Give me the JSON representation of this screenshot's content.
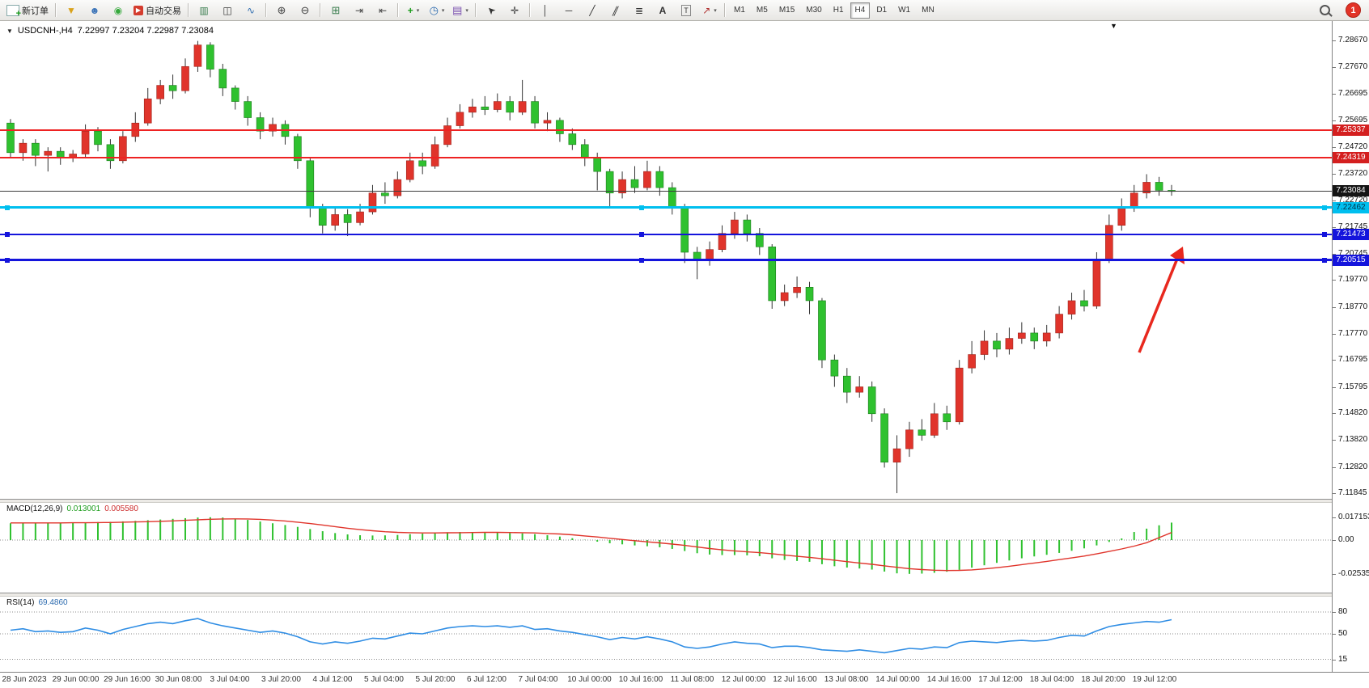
{
  "toolbar": {
    "new_order": "新订单",
    "autotrading": "自动交易",
    "timeframes": [
      {
        "label": "M1",
        "active": false
      },
      {
        "label": "M5",
        "active": false
      },
      {
        "label": "M15",
        "active": false
      },
      {
        "label": "M30",
        "active": false
      },
      {
        "label": "H1",
        "active": false
      },
      {
        "label": "H4",
        "active": true
      },
      {
        "label": "D1",
        "active": false
      },
      {
        "label": "W1",
        "active": false
      },
      {
        "label": "MN",
        "active": false
      }
    ],
    "notification_count": "1"
  },
  "chart": {
    "title_symbol": "USDCNH-,H4",
    "title_ohlc": "7.22997 7.23204 7.22987 7.23084"
  },
  "hlines": [
    {
      "name": "resistance-line-1",
      "price": 7.25337,
      "label": "7.25337",
      "color": "#ee2222",
      "tag_bg": "#d41f1f",
      "tag_fg": "#ffffff",
      "thickness": 2,
      "handles": false
    },
    {
      "name": "resistance-line-2",
      "price": 7.24319,
      "label": "7.24319",
      "color": "#ee2222",
      "tag_bg": "#d41f1f",
      "tag_fg": "#ffffff",
      "thickness": 2,
      "handles": false
    },
    {
      "name": "current-price-line",
      "price": 7.23084,
      "label": "7.23084",
      "color": "#3c3c3c",
      "tag_bg": "#141414",
      "tag_fg": "#ffffff",
      "thickness": 1,
      "handles": false
    },
    {
      "name": "support-line-cyan",
      "price": 7.22462,
      "label": "7.22462",
      "color": "#00bfef",
      "tag_bg": "#00bfef",
      "tag_fg": "#00324a",
      "thickness": 3,
      "handles": true
    },
    {
      "name": "support-line-blue-1",
      "price": 7.21473,
      "label": "7.21473",
      "color": "#1414dc",
      "tag_bg": "#1414dc",
      "tag_fg": "#ffffff",
      "thickness": 2,
      "handles": true
    },
    {
      "name": "support-line-blue-2",
      "price": 7.20515,
      "label": "7.20515",
      "color": "#1414dc",
      "tag_bg": "#1414dc",
      "tag_fg": "#ffffff",
      "thickness": 3,
      "handles": true
    }
  ],
  "panels": {
    "macd": {
      "name": "MACD(12,26,9)",
      "value": "0.013001",
      "signal": "0.005580",
      "axis": [
        {
          "label": "0.017153",
          "value": 0.017153
        },
        {
          "label": "0.00",
          "value": 0
        },
        {
          "label": "-0.025358",
          "value": -0.025358
        }
      ]
    },
    "rsi": {
      "name": "RSI(14)",
      "value": "69.4860",
      "levels": [
        {
          "label": "80",
          "value": 80
        },
        {
          "label": "50",
          "value": 50
        },
        {
          "label": "15",
          "value": 15
        }
      ]
    }
  },
  "annotation": {
    "arrow_color": "#e8281e"
  },
  "chart_data": {
    "type": "candlestick",
    "title": "USDCNH-,H4",
    "symbol": "USDCNH",
    "timeframe": "H4",
    "bull_color": "#e0342b",
    "bear_color": "#2fc12f",
    "price_range": {
      "top": 7.2939,
      "bottom": 7.1164
    },
    "price_ticks": [
      "7.28670",
      "7.27670",
      "7.26695",
      "7.25695",
      "7.24720",
      "7.23720",
      "7.22720",
      "7.21745",
      "7.20745",
      "7.19770",
      "7.18770",
      "7.17770",
      "7.16795",
      "7.15795",
      "7.14820",
      "7.13820",
      "7.12820",
      "7.11845"
    ],
    "time_labels": [
      "28 Jun 2023",
      "29 Jun 00:00",
      "29 Jun 16:00",
      "30 Jun 08:00",
      "3 Jul 04:00",
      "3 Jul 20:00",
      "4 Jul 12:00",
      "5 Jul 04:00",
      "5 Jul 20:00",
      "6 Jul 12:00",
      "7 Jul 04:00",
      "10 Jul 00:00",
      "10 Jul 16:00",
      "11 Jul 08:00",
      "12 Jul 00:00",
      "12 Jul 16:00",
      "13 Jul 08:00",
      "14 Jul 00:00",
      "14 Jul 16:00",
      "17 Jul 12:00",
      "18 Jul 04:00",
      "18 Jul 20:00",
      "19 Jul 12:00"
    ],
    "candles": [
      [
        7.256,
        7.2575,
        7.243,
        7.245
      ],
      [
        7.245,
        7.25,
        7.242,
        7.2485
      ],
      [
        7.2485,
        7.25,
        7.24,
        7.244
      ],
      [
        7.244,
        7.247,
        7.238,
        7.2455
      ],
      [
        7.2455,
        7.247,
        7.2405,
        7.243
      ],
      [
        7.243,
        7.246,
        7.2415,
        7.2445
      ],
      [
        7.2445,
        7.2555,
        7.243,
        7.253
      ],
      [
        7.253,
        7.2545,
        7.2455,
        7.248
      ],
      [
        7.248,
        7.25,
        7.239,
        7.242
      ],
      [
        7.242,
        7.253,
        7.241,
        7.251
      ],
      [
        7.251,
        7.26,
        7.249,
        7.256
      ],
      [
        7.256,
        7.269,
        7.255,
        7.265
      ],
      [
        7.265,
        7.272,
        7.263,
        7.27
      ],
      [
        7.27,
        7.274,
        7.265,
        7.268
      ],
      [
        7.268,
        7.28,
        7.267,
        7.277
      ],
      [
        7.277,
        7.2865,
        7.275,
        7.285
      ],
      [
        7.285,
        7.286,
        7.273,
        7.276
      ],
      [
        7.276,
        7.278,
        7.266,
        7.269
      ],
      [
        7.269,
        7.27,
        7.261,
        7.264
      ],
      [
        7.264,
        7.266,
        7.255,
        7.258
      ],
      [
        7.258,
        7.26,
        7.25,
        7.253
      ],
      [
        7.253,
        7.258,
        7.251,
        7.2555
      ],
      [
        7.2555,
        7.257,
        7.248,
        7.251
      ],
      [
        7.251,
        7.252,
        7.239,
        7.242
      ],
      [
        7.242,
        7.243,
        7.221,
        7.225
      ],
      [
        7.225,
        7.226,
        7.215,
        7.218
      ],
      [
        7.218,
        7.225,
        7.216,
        7.222
      ],
      [
        7.222,
        7.224,
        7.214,
        7.219
      ],
      [
        7.219,
        7.226,
        7.218,
        7.223
      ],
      [
        7.223,
        7.233,
        7.222,
        7.23
      ],
      [
        7.23,
        7.234,
        7.226,
        7.229
      ],
      [
        7.229,
        7.238,
        7.228,
        7.235
      ],
      [
        7.235,
        7.245,
        7.234,
        7.242
      ],
      [
        7.242,
        7.245,
        7.237,
        7.24
      ],
      [
        7.24,
        7.251,
        7.239,
        7.248
      ],
      [
        7.248,
        7.258,
        7.247,
        7.255
      ],
      [
        7.255,
        7.263,
        7.254,
        7.26
      ],
      [
        7.26,
        7.265,
        7.258,
        7.262
      ],
      [
        7.262,
        7.266,
        7.259,
        7.261
      ],
      [
        7.261,
        7.267,
        7.26,
        7.264
      ],
      [
        7.264,
        7.266,
        7.257,
        7.26
      ],
      [
        7.26,
        7.272,
        7.259,
        7.264
      ],
      [
        7.264,
        7.266,
        7.254,
        7.256
      ],
      [
        7.256,
        7.26,
        7.253,
        7.257
      ],
      [
        7.257,
        7.258,
        7.249,
        7.252
      ],
      [
        7.252,
        7.254,
        7.246,
        7.248
      ],
      [
        7.248,
        7.25,
        7.24,
        7.243
      ],
      [
        7.243,
        7.245,
        7.231,
        7.238
      ],
      [
        7.238,
        7.239,
        7.225,
        7.23
      ],
      [
        7.23,
        7.238,
        7.228,
        7.235
      ],
      [
        7.235,
        7.24,
        7.23,
        7.232
      ],
      [
        7.232,
        7.242,
        7.231,
        7.238
      ],
      [
        7.238,
        7.24,
        7.229,
        7.232
      ],
      [
        7.232,
        7.234,
        7.222,
        7.225
      ],
      [
        7.225,
        7.226,
        7.204,
        7.208
      ],
      [
        7.208,
        7.21,
        7.198,
        7.205
      ],
      [
        7.205,
        7.212,
        7.203,
        7.209
      ],
      [
        7.209,
        7.218,
        7.208,
        7.215
      ],
      [
        7.215,
        7.223,
        7.213,
        7.22
      ],
      [
        7.22,
        7.222,
        7.212,
        7.215
      ],
      [
        7.215,
        7.217,
        7.207,
        7.21
      ],
      [
        7.21,
        7.211,
        7.187,
        7.19
      ],
      [
        7.19,
        7.196,
        7.188,
        7.193
      ],
      [
        7.193,
        7.199,
        7.191,
        7.195
      ],
      [
        7.195,
        7.197,
        7.185,
        7.19
      ],
      [
        7.19,
        7.191,
        7.165,
        7.168
      ],
      [
        7.168,
        7.17,
        7.158,
        7.162
      ],
      [
        7.162,
        7.165,
        7.152,
        7.156
      ],
      [
        7.156,
        7.162,
        7.154,
        7.158
      ],
      [
        7.158,
        7.16,
        7.145,
        7.148
      ],
      [
        7.148,
        7.15,
        7.128,
        7.13
      ],
      [
        7.13,
        7.14,
        7.1185,
        7.135
      ],
      [
        7.135,
        7.145,
        7.132,
        7.142
      ],
      [
        7.142,
        7.146,
        7.138,
        7.14
      ],
      [
        7.14,
        7.152,
        7.139,
        7.148
      ],
      [
        7.148,
        7.151,
        7.142,
        7.145
      ],
      [
        7.145,
        7.168,
        7.144,
        7.165
      ],
      [
        7.165,
        7.175,
        7.163,
        7.17
      ],
      [
        7.17,
        7.179,
        7.168,
        7.175
      ],
      [
        7.175,
        7.178,
        7.169,
        7.172
      ],
      [
        7.172,
        7.18,
        7.17,
        7.176
      ],
      [
        7.176,
        7.182,
        7.174,
        7.178
      ],
      [
        7.178,
        7.18,
        7.172,
        7.175
      ],
      [
        7.175,
        7.181,
        7.173,
        7.178
      ],
      [
        7.178,
        7.188,
        7.176,
        7.185
      ],
      [
        7.185,
        7.193,
        7.183,
        7.19
      ],
      [
        7.19,
        7.194,
        7.186,
        7.188
      ],
      [
        7.188,
        7.208,
        7.187,
        7.205
      ],
      [
        7.205,
        7.222,
        7.204,
        7.218
      ],
      [
        7.218,
        7.228,
        7.216,
        7.225
      ],
      [
        7.225,
        7.233,
        7.223,
        7.23
      ],
      [
        7.23,
        7.237,
        7.228,
        7.234
      ],
      [
        7.234,
        7.236,
        7.229,
        7.231
      ],
      [
        7.231,
        7.233,
        7.229,
        7.2308
      ]
    ],
    "indicators": {
      "macd": {
        "hist_color": "#2fc12f",
        "signal_color": "#e0342b",
        "histogram": [
          0.0125,
          0.0126,
          0.0127,
          0.0128,
          0.0129,
          0.013,
          0.0132,
          0.0134,
          0.0136,
          0.0139,
          0.0143,
          0.0148,
          0.0153,
          0.0158,
          0.0163,
          0.0168,
          0.017,
          0.0168,
          0.016,
          0.015,
          0.0138,
          0.0125,
          0.0112,
          0.0098,
          0.0082,
          0.0066,
          0.0052,
          0.0042,
          0.0036,
          0.0034,
          0.0035,
          0.0038,
          0.0044,
          0.0048,
          0.0052,
          0.0058,
          0.006,
          0.006,
          0.0058,
          0.0056,
          0.0052,
          0.005,
          0.0044,
          0.0036,
          0.0026,
          0.0014,
          0.0002,
          -0.0012,
          -0.0024,
          -0.0032,
          -0.004,
          -0.0046,
          -0.0054,
          -0.0066,
          -0.0082,
          -0.0098,
          -0.0108,
          -0.0112,
          -0.0112,
          -0.0114,
          -0.012,
          -0.0136,
          -0.0148,
          -0.0156,
          -0.0162,
          -0.018,
          -0.0195,
          -0.0205,
          -0.0212,
          -0.022,
          -0.0235,
          -0.0248,
          -0.0252,
          -0.025,
          -0.0244,
          -0.0236,
          -0.0222,
          -0.0206,
          -0.0188,
          -0.017,
          -0.0152,
          -0.0136,
          -0.0122,
          -0.011,
          -0.0096,
          -0.008,
          -0.0062,
          -0.004,
          -0.0014,
          0.0012,
          0.006,
          0.0085,
          0.011,
          0.013
        ],
        "signal": [
          0.0128,
          0.0128,
          0.0128,
          0.0128,
          0.0128,
          0.0129,
          0.0129,
          0.013,
          0.0131,
          0.0133,
          0.0135,
          0.0137,
          0.014,
          0.0143,
          0.0147,
          0.0151,
          0.0155,
          0.0157,
          0.0158,
          0.0157,
          0.0154,
          0.0149,
          0.0142,
          0.0133,
          0.0123,
          0.0112,
          0.01,
          0.0088,
          0.0078,
          0.0069,
          0.0062,
          0.0057,
          0.0055,
          0.0053,
          0.0053,
          0.0054,
          0.0055,
          0.0056,
          0.0057,
          0.0057,
          0.0056,
          0.0055,
          0.0053,
          0.0049,
          0.0045,
          0.0039,
          0.0031,
          0.0023,
          0.0013,
          0.0004,
          -0.0005,
          -0.0013,
          -0.0021,
          -0.003,
          -0.004,
          -0.0052,
          -0.0063,
          -0.0073,
          -0.0081,
          -0.0088,
          -0.0094,
          -0.0102,
          -0.0112,
          -0.0121,
          -0.0129,
          -0.0139,
          -0.015,
          -0.0161,
          -0.0171,
          -0.0181,
          -0.0192,
          -0.0203,
          -0.0213,
          -0.022,
          -0.0225,
          -0.0227,
          -0.0226,
          -0.0222,
          -0.0215,
          -0.0206,
          -0.0195,
          -0.0183,
          -0.0171,
          -0.0159,
          -0.0146,
          -0.0133,
          -0.0119,
          -0.0103,
          -0.0085,
          -0.0066,
          -0.0045,
          -0.002,
          0.0018,
          0.0056
        ]
      },
      "rsi": {
        "color": "#2f8de4",
        "values": [
          55,
          57,
          53,
          54,
          52,
          53,
          58,
          55,
          50,
          56,
          60,
          64,
          66,
          64,
          68,
          71,
          65,
          61,
          58,
          55,
          52,
          54,
          51,
          46,
          39,
          36,
          39,
          37,
          40,
          44,
          43,
          47,
          51,
          50,
          54,
          58,
          60,
          61,
          60,
          61,
          59,
          61,
          56,
          57,
          54,
          52,
          49,
          46,
          42,
          45,
          43,
          46,
          43,
          39,
          32,
          30,
          32,
          36,
          39,
          37,
          36,
          31,
          33,
          33,
          31,
          28,
          27,
          26,
          28,
          26,
          24,
          27,
          30,
          29,
          32,
          31,
          38,
          40,
          39,
          38,
          40,
          41,
          40,
          41,
          45,
          48,
          47,
          54,
          60,
          63,
          65,
          67,
          66,
          69.49
        ]
      }
    }
  }
}
